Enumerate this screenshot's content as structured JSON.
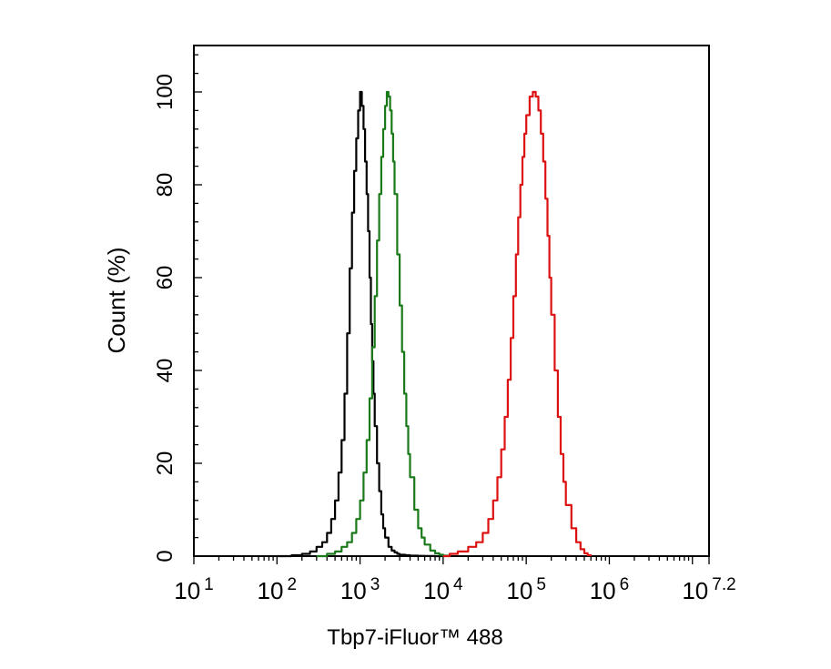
{
  "chart_data": {
    "type": "line",
    "xlabel": "Tbp7-iFluor™ 488",
    "ylabel": "Count  (%)",
    "x_scale": "log10",
    "xlim": [
      10,
      15848932
    ],
    "ylim": [
      0,
      110
    ],
    "x_ticks": [
      {
        "value": 10,
        "base": "10",
        "exp": "1"
      },
      {
        "value": 100,
        "base": "10",
        "exp": "2"
      },
      {
        "value": 1000,
        "base": "10",
        "exp": "3"
      },
      {
        "value": 10000,
        "base": "10",
        "exp": "4"
      },
      {
        "value": 100000,
        "base": "10",
        "exp": "5"
      },
      {
        "value": 1000000,
        "base": "10",
        "exp": "6"
      },
      {
        "value": 15848932,
        "base": "10",
        "exp": "7.2"
      }
    ],
    "y_ticks": [
      0,
      20,
      40,
      60,
      80,
      100
    ],
    "grid": false,
    "legend": "none",
    "series": [
      {
        "color": "#000000",
        "x": [
          100,
          150,
          200,
          250,
          300,
          350,
          400,
          450,
          500,
          550,
          600,
          650,
          700,
          750,
          800,
          850,
          900,
          950,
          1000,
          1050,
          1100,
          1150,
          1200,
          1250,
          1300,
          1350,
          1400,
          1450,
          1500,
          1600,
          1700,
          1800,
          1900,
          2000,
          2200,
          2400,
          2600,
          2800,
          3000,
          3500,
          4000,
          5000,
          6000,
          8000,
          10000
        ],
        "y": [
          0,
          0.2,
          0.5,
          1,
          2,
          3,
          5,
          8,
          12,
          18,
          25,
          35,
          48,
          62,
          74,
          83,
          90,
          96,
          100,
          97,
          92,
          85,
          78,
          70,
          60,
          50,
          42,
          35,
          28,
          20,
          14,
          9,
          6,
          4,
          2,
          1.2,
          0.8,
          0.5,
          0.3,
          0.2,
          0.1,
          0.05,
          0.02,
          0,
          0
        ]
      },
      {
        "color": "#1a7a1a",
        "x": [
          300,
          400,
          500,
          600,
          700,
          800,
          900,
          1000,
          1100,
          1200,
          1300,
          1400,
          1500,
          1600,
          1700,
          1800,
          1900,
          2000,
          2100,
          2200,
          2300,
          2400,
          2500,
          2600,
          2800,
          3000,
          3200,
          3400,
          3600,
          3800,
          4000,
          4500,
          5000,
          5500,
          6000,
          7000,
          8000,
          9000,
          10000,
          12000
        ],
        "y": [
          0,
          0.5,
          1,
          2,
          3,
          5,
          8,
          12,
          18,
          25,
          34,
          45,
          56,
          68,
          78,
          86,
          92,
          97,
          100,
          99,
          96,
          91,
          85,
          78,
          65,
          54,
          44,
          35,
          28,
          22,
          17,
          10,
          6,
          4,
          2.5,
          1.2,
          0.6,
          0.3,
          0.1,
          0
        ]
      },
      {
        "color": "#dd1111",
        "x": [
          10000,
          12000,
          15000,
          20000,
          25000,
          30000,
          35000,
          40000,
          45000,
          50000,
          55000,
          60000,
          65000,
          70000,
          75000,
          80000,
          85000,
          90000,
          95000,
          100000,
          110000,
          120000,
          130000,
          140000,
          150000,
          160000,
          170000,
          180000,
          190000,
          200000,
          220000,
          240000,
          260000,
          280000,
          300000,
          350000,
          400000,
          450000,
          500000,
          550000,
          600000
        ],
        "y": [
          0,
          0.5,
          1,
          2,
          3,
          5,
          8,
          12,
          17,
          23,
          30,
          38,
          47,
          56,
          65,
          73,
          80,
          86,
          91,
          95,
          99,
          100,
          99,
          96,
          91,
          85,
          77,
          69,
          60,
          52,
          40,
          30,
          22,
          16,
          11,
          6,
          3,
          1.5,
          0.6,
          0.2,
          0
        ]
      }
    ]
  }
}
